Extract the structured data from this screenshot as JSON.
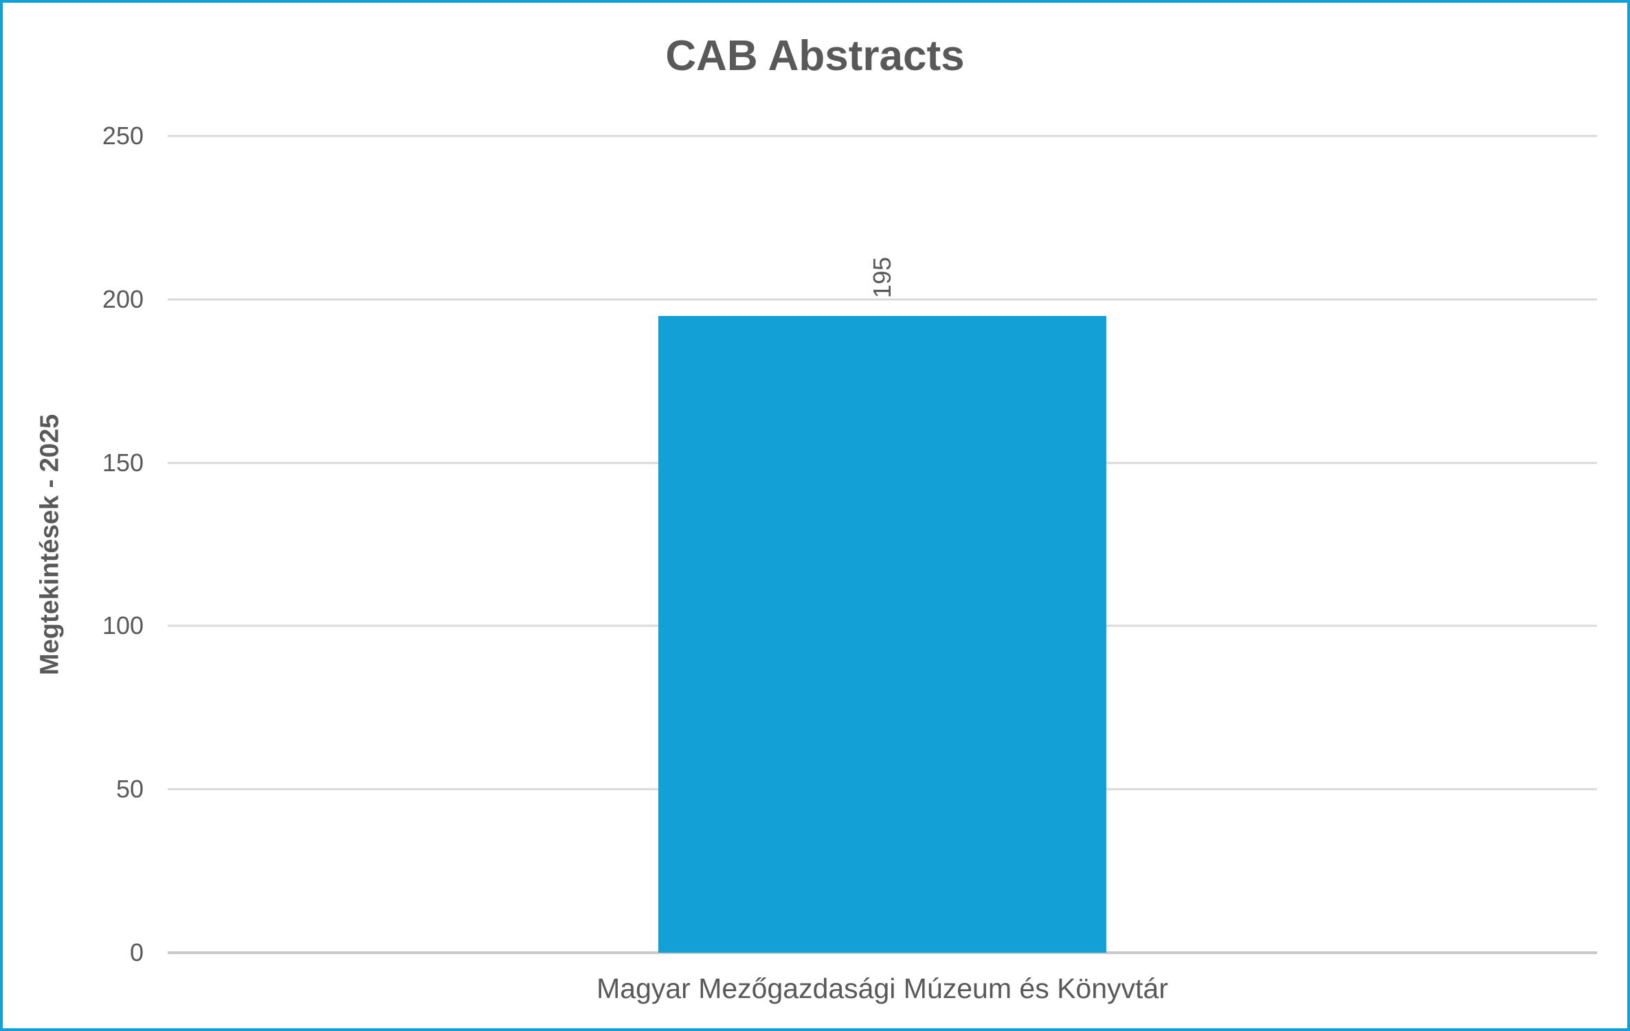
{
  "chart_data": {
    "type": "bar",
    "title": "CAB Abstracts",
    "categories": [
      "Magyar Mezőgazdasági Múzeum és Könyvtár"
    ],
    "values": [
      195
    ],
    "xlabel": "",
    "ylabel": "Megtekintések - 2025",
    "ylim": [
      0,
      250
    ],
    "yticks": [
      0,
      50,
      100,
      150,
      200,
      250
    ],
    "grid": true,
    "legend": false,
    "data_labels": true,
    "data_label_rotation": "vertical"
  },
  "colors": {
    "bar": "#12A0D6",
    "frame_border": "#12A0D6",
    "text": "#595959",
    "gridline": "#D9D9D9",
    "axis_line": "#C9C9C9",
    "background": "#FFFFFF"
  }
}
